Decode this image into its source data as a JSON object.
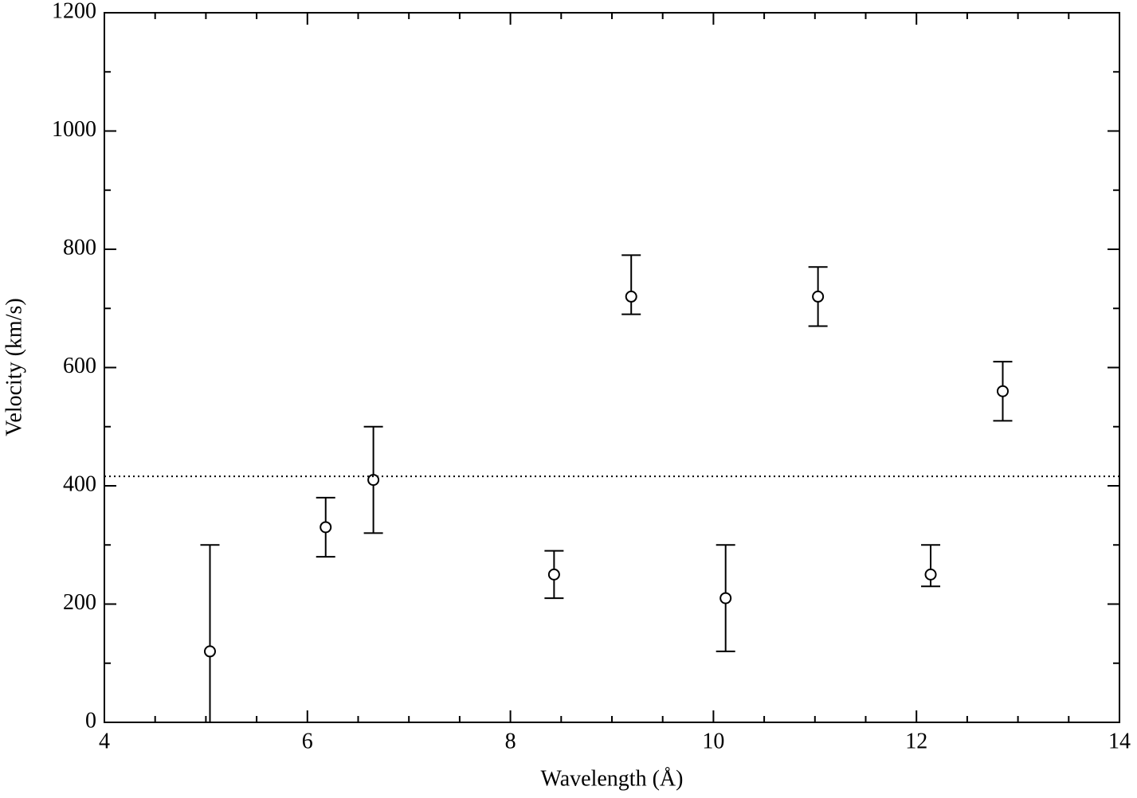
{
  "chart_data": {
    "type": "scatter",
    "x_label": "Wavelength (Å)",
    "y_label": "Velocity (km/s)",
    "x": [
      5.04,
      6.18,
      6.65,
      8.43,
      9.19,
      10.12,
      11.03,
      12.14,
      12.85
    ],
    "values": [
      120,
      330,
      410,
      250,
      720,
      210,
      720,
      250,
      560
    ],
    "error_plus": [
      180,
      50,
      90,
      40,
      70,
      90,
      50,
      50,
      50
    ],
    "error_minus": [
      120,
      50,
      90,
      40,
      30,
      90,
      50,
      20,
      50
    ],
    "color": "#000000",
    "reference_line": 416,
    "xlim": [
      4,
      14
    ],
    "ylim": [
      0,
      1200
    ],
    "xticks": [
      4,
      6,
      8,
      10,
      12,
      14
    ],
    "yticks": [
      0,
      200,
      400,
      600,
      800,
      1000,
      1200
    ],
    "xminorticks": [
      4.5,
      5,
      5.5,
      6.5,
      7,
      7.5,
      8.5,
      9,
      9.5,
      10.5,
      11,
      11.5,
      12.5,
      13,
      13.5
    ],
    "yminorticks": [
      100,
      300,
      500,
      700,
      900,
      1100
    ]
  }
}
